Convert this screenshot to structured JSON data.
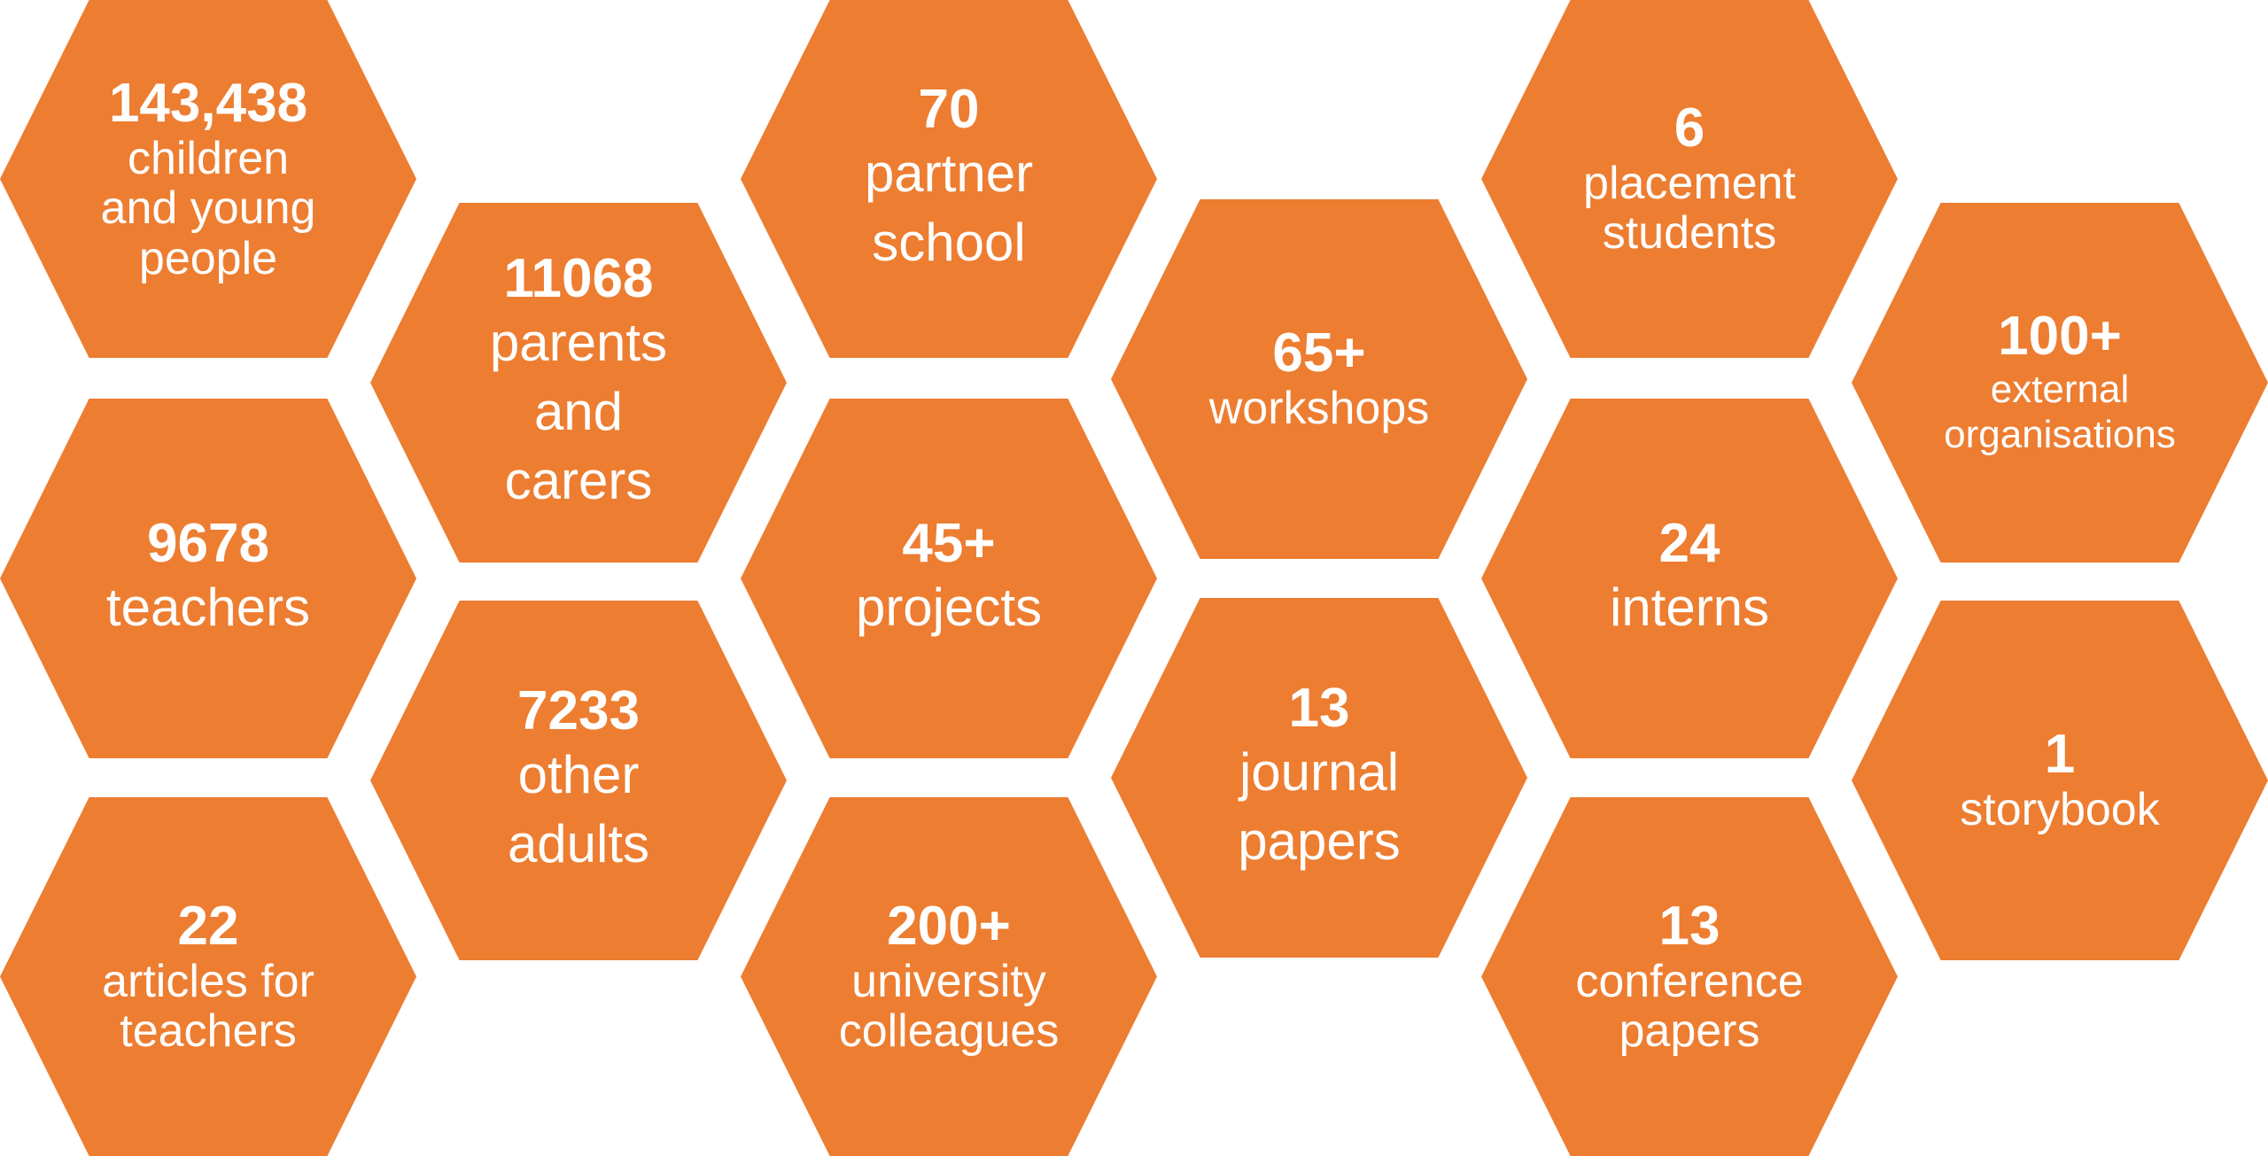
{
  "colors": {
    "hex_fill": "#ED7D31",
    "text": "#FFFFFF",
    "background": "#FFFFFF"
  },
  "tiles": [
    {
      "number": "143,438",
      "label": "children\nand young\npeople"
    },
    {
      "number": "9678",
      "label": "teachers"
    },
    {
      "number": "22",
      "label": "articles for\nteachers"
    },
    {
      "number": "11068",
      "label": "parents\nand\ncarers"
    },
    {
      "number": "7233",
      "label": "other\nadults"
    },
    {
      "number": "70",
      "label": "partner\nschool"
    },
    {
      "number": "45+",
      "label": "projects"
    },
    {
      "number": "200+",
      "label": "university\ncolleagues"
    },
    {
      "number": "65+",
      "label": "workshops"
    },
    {
      "number": "13",
      "label": "journal\npapers"
    },
    {
      "number": "6",
      "label": "placement\nstudents"
    },
    {
      "number": "24",
      "label": "interns"
    },
    {
      "number": "13",
      "label": "conference\npapers"
    },
    {
      "number": "100+",
      "label": "external\norganisations"
    },
    {
      "number": "1",
      "label": "storybook"
    }
  ]
}
